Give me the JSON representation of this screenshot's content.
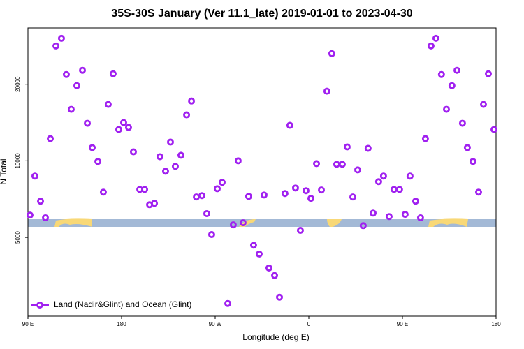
{
  "chart_data": {
    "type": "scatter",
    "title": "35S-30S January (Ver 11.1_late)   2019-01-01 to 2023-04-30",
    "x_label": "Longitude (deg E)",
    "y_label": "N Total",
    "log_y": true,
    "legend": "lower left",
    "xlim": [
      90,
      540
    ],
    "xticks": [
      {
        "value": 90,
        "label": "90 E"
      },
      180,
      {
        "value": 270,
        "label": "90 W"
      },
      {
        "value": 360,
        "label": "0"
      },
      {
        "value": 450,
        "label": "90 E"
      },
      {
        "value": 540,
        "label": "180"
      }
    ],
    "ylim": [
      2450,
      33300
    ],
    "yticks": [
      5000,
      10000,
      20000
    ],
    "series": [
      {
        "name": "Land (Nadir&Glint) and Ocean (Glint)",
        "color": "#a020f0",
        "x": [
          92.0,
          96.7,
          102.1,
          106.8,
          111.5,
          116.9,
          122.2,
          126.9,
          131.6,
          137.0,
          142.4,
          147.1,
          151.8,
          157.2,
          162.5,
          167.2,
          171.9,
          177.3,
          182.0,
          186.7,
          191.4,
          197.5,
          202.2,
          206.9,
          211.6,
          216.9,
          222.3,
          227.0,
          231.7,
          237.1,
          242.5,
          247.2,
          251.9,
          257.2,
          261.9,
          266.6,
          272.0,
          276.7,
          282.1,
          287.4,
          292.1,
          296.8,
          302.2,
          306.9,
          312.3,
          317.0,
          321.7,
          327.1,
          331.8,
          337.1,
          341.8,
          347.2,
          351.9,
          357.3,
          362.0,
          367.4,
          372.1,
          377.4,
          382.1,
          386.8,
          392.2,
          396.9,
          402.3,
          407.0,
          412.3,
          417.0,
          421.8,
          427.1,
          431.8,
          437.2,
          441.9,
          447.2,
          452.6,
          457.3,
          462.7,
          467.4,
          472.1,
          477.5,
          482.2,
          487.5,
          492.3,
          497.6,
          502.4,
          507.7,
          512.4,
          517.8,
          523.2,
          527.9,
          532.6,
          538.0
        ],
        "values": [
          6120,
          8710,
          6940,
          5970,
          12230,
          28280,
          30310,
          21840,
          15940,
          19750,
          22690,
          14050,
          11270,
          9940,
          7530,
          16660,
          21980,
          13280,
          14140,
          13530,
          10850,
          7720,
          7720,
          6720,
          6810,
          10380,
          9100,
          11850,
          9510,
          10520,
          15160,
          17190,
          7210,
          7300,
          6200,
          5130,
          7770,
          8230,
          2750,
          5600,
          10000,
          5710,
          7250,
          4660,
          4300,
          7340,
          3790,
          3540,
          2910,
          7440,
          13790,
          7820,
          5330,
          7630,
          7120,
          9750,
          7680,
          18780,
          26390,
          9690,
          9690,
          11340,
          7210,
          9210,
          5560,
          11200,
          6230,
          8280,
          8710,
          6040,
          7720,
          7720,
          6160,
          8710,
          6940,
          5970,
          12230,
          28280,
          30310,
          21840,
          15940,
          19750,
          22690,
          14050,
          11270,
          9940,
          7530,
          16660,
          21980,
          13280
        ]
      }
    ]
  }
}
